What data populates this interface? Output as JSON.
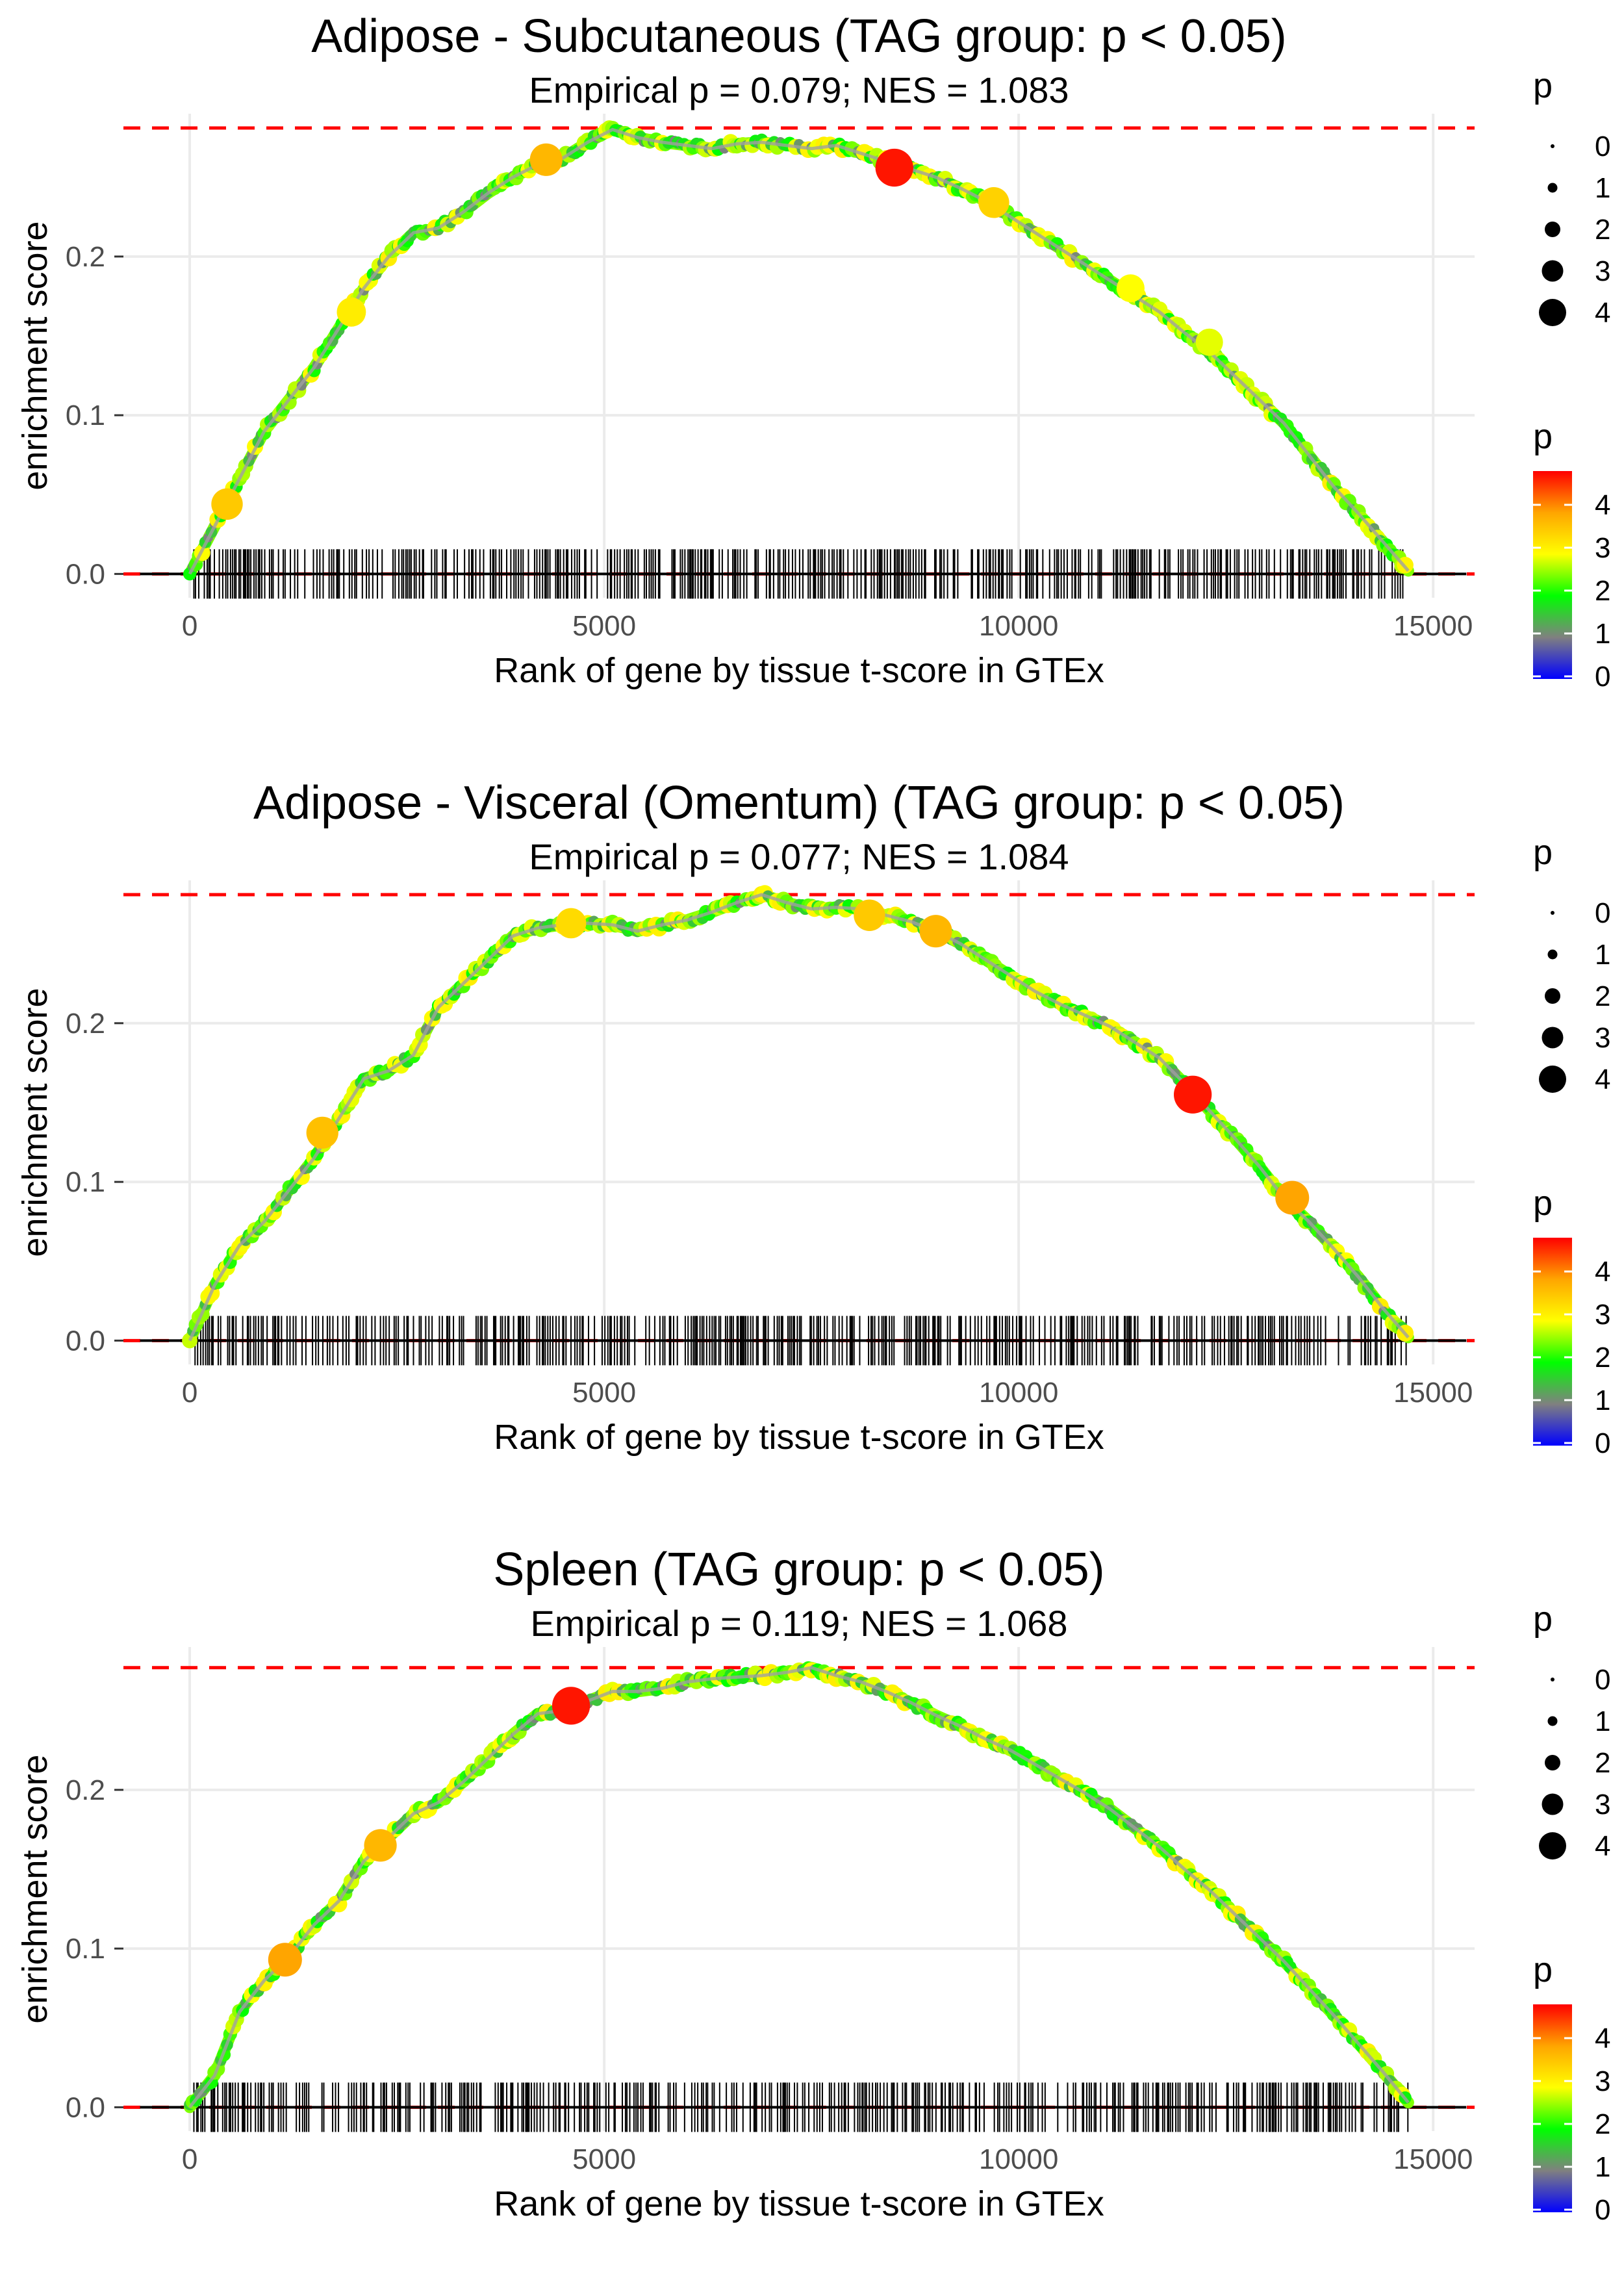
{
  "chart_data": [
    {
      "type": "line",
      "title": "Adipose - Subcutaneous (TAG group: p < 0.05)",
      "subtitle": "Empirical p = 0.079; NES = 1.083",
      "xlabel": "Rank of gene by tissue t-score in GTEx",
      "ylabel": "enrichment score",
      "xlim": [
        -800,
        15500
      ],
      "ylim": [
        -0.015,
        0.29
      ],
      "xticks": [
        0,
        5000,
        10000,
        15000
      ],
      "xtick_labels": [
        "0",
        "5000",
        "10000",
        "15000"
      ],
      "yticks": [
        0.0,
        0.1,
        0.2
      ],
      "ytick_labels": [
        "0.0",
        "0.1",
        "0.2"
      ],
      "max_es": 0.281,
      "max_line_color": "#ff0000",
      "series": [
        {
          "name": "running enrichment score",
          "x": [
            0,
            300,
            600,
            900,
            1200,
            1500,
            1800,
            2100,
            2400,
            2700,
            3000,
            3300,
            3600,
            3900,
            4200,
            4500,
            4800,
            5100,
            5400,
            5700,
            6000,
            6300,
            6600,
            6900,
            7200,
            7500,
            7800,
            8100,
            8400,
            8700,
            9000,
            9300,
            9600,
            9900,
            10200,
            10500,
            10800,
            11100,
            11400,
            11700,
            12000,
            12300,
            12600,
            12900,
            13200,
            13500,
            13800,
            14100,
            14400,
            14700
          ],
          "values": [
            0.0,
            0.03,
            0.06,
            0.09,
            0.11,
            0.13,
            0.155,
            0.18,
            0.2,
            0.215,
            0.218,
            0.228,
            0.24,
            0.25,
            0.258,
            0.262,
            0.272,
            0.28,
            0.275,
            0.272,
            0.27,
            0.268,
            0.271,
            0.272,
            0.27,
            0.268,
            0.27,
            0.265,
            0.26,
            0.255,
            0.25,
            0.243,
            0.235,
            0.225,
            0.215,
            0.205,
            0.195,
            0.185,
            0.175,
            0.165,
            0.152,
            0.14,
            0.125,
            0.11,
            0.095,
            0.075,
            0.055,
            0.038,
            0.02,
            0.002
          ]
        }
      ],
      "highlight_points": [
        {
          "x": 450,
          "y": 0.044,
          "p": 3.6
        },
        {
          "x": 1950,
          "y": 0.165,
          "p": 3.2
        },
        {
          "x": 4300,
          "y": 0.261,
          "p": 3.8
        },
        {
          "x": 8500,
          "y": 0.256,
          "p": 4.7
        },
        {
          "x": 9700,
          "y": 0.234,
          "p": 3.5
        },
        {
          "x": 11350,
          "y": 0.18,
          "p": 3.0
        },
        {
          "x": 12300,
          "y": 0.146,
          "p": 2.9
        }
      ],
      "legend_size": {
        "title": "p",
        "labels": [
          "0",
          "1",
          "2",
          "3",
          "4"
        ]
      },
      "legend_color": {
        "title": "p",
        "labels": [
          "4",
          "3",
          "2",
          "1",
          "0"
        ],
        "stops": [
          "#ff0000",
          "#ffa500",
          "#ffff00",
          "#00ff00",
          "#808080",
          "#0000ff"
        ]
      }
    },
    {
      "type": "line",
      "title": "Adipose - Visceral (Omentum) (TAG group: p < 0.05)",
      "subtitle": "Empirical p = 0.077; NES = 1.084",
      "xlabel": "Rank of gene by tissue t-score in GTEx",
      "ylabel": "enrichment score",
      "xlim": [
        -800,
        15500
      ],
      "ylim": [
        -0.015,
        0.29
      ],
      "xticks": [
        0,
        5000,
        10000,
        15000
      ],
      "xtick_labels": [
        "0",
        "5000",
        "10000",
        "15000"
      ],
      "yticks": [
        0.0,
        0.1,
        0.2
      ],
      "ytick_labels": [
        "0.0",
        "0.1",
        "0.2"
      ],
      "max_es": 0.281,
      "max_line_color": "#ff0000",
      "series": [
        {
          "name": "running enrichment score",
          "x": [
            0,
            300,
            600,
            900,
            1200,
            1500,
            1800,
            2100,
            2400,
            2700,
            3000,
            3300,
            3600,
            3900,
            4200,
            4500,
            4800,
            5100,
            5400,
            5700,
            6000,
            6300,
            6600,
            6900,
            7200,
            7500,
            7800,
            8100,
            8400,
            8700,
            9000,
            9300,
            9600,
            9900,
            10200,
            10500,
            10800,
            11100,
            11400,
            11700,
            12000,
            12300,
            12600,
            12900,
            13200,
            13500,
            13800,
            14100,
            14400,
            14700
          ],
          "values": [
            0.0,
            0.035,
            0.06,
            0.075,
            0.095,
            0.115,
            0.14,
            0.165,
            0.17,
            0.18,
            0.21,
            0.225,
            0.24,
            0.255,
            0.26,
            0.262,
            0.263,
            0.262,
            0.258,
            0.262,
            0.265,
            0.27,
            0.276,
            0.281,
            0.276,
            0.272,
            0.273,
            0.272,
            0.268,
            0.264,
            0.258,
            0.25,
            0.24,
            0.23,
            0.22,
            0.212,
            0.205,
            0.198,
            0.188,
            0.178,
            0.162,
            0.145,
            0.128,
            0.11,
            0.09,
            0.075,
            0.058,
            0.04,
            0.02,
            0.002
          ]
        }
      ],
      "highlight_points": [
        {
          "x": 1600,
          "y": 0.131,
          "p": 3.7
        },
        {
          "x": 4600,
          "y": 0.263,
          "p": 3.4
        },
        {
          "x": 8200,
          "y": 0.268,
          "p": 3.6
        },
        {
          "x": 9000,
          "y": 0.258,
          "p": 3.8
        },
        {
          "x": 12100,
          "y": 0.155,
          "p": 4.7
        },
        {
          "x": 13300,
          "y": 0.09,
          "p": 4.0
        }
      ],
      "legend_size": {
        "title": "p",
        "labels": [
          "0",
          "1",
          "2",
          "3",
          "4"
        ]
      },
      "legend_color": {
        "title": "p",
        "labels": [
          "4",
          "3",
          "2",
          "1",
          "0"
        ],
        "stops": [
          "#ff0000",
          "#ffa500",
          "#ffff00",
          "#00ff00",
          "#808080",
          "#0000ff"
        ]
      }
    },
    {
      "type": "line",
      "title": "Spleen (TAG group: p < 0.05)",
      "subtitle": "Empirical p = 0.119; NES = 1.068",
      "xlabel": "Rank of gene by tissue t-score in GTEx",
      "ylabel": "enrichment score",
      "xlim": [
        -800,
        15500
      ],
      "ylim": [
        -0.015,
        0.29
      ],
      "xticks": [
        0,
        5000,
        10000,
        15000
      ],
      "xtick_labels": [
        "0",
        "5000",
        "10000",
        "15000"
      ],
      "yticks": [
        0.0,
        0.1,
        0.2
      ],
      "ytick_labels": [
        "0.0",
        "0.1",
        "0.2"
      ],
      "max_es": 0.277,
      "max_line_color": "#ff0000",
      "series": [
        {
          "name": "running enrichment score",
          "x": [
            0,
            300,
            600,
            900,
            1200,
            1500,
            1800,
            2100,
            2400,
            2700,
            3000,
            3300,
            3600,
            3900,
            4200,
            4500,
            4800,
            5100,
            5400,
            5700,
            6000,
            6300,
            6600,
            6900,
            7200,
            7500,
            7800,
            8100,
            8400,
            8700,
            9000,
            9300,
            9600,
            9900,
            10200,
            10500,
            10800,
            11100,
            11400,
            11700,
            12000,
            12300,
            12600,
            12900,
            13200,
            13500,
            13800,
            14100,
            14400,
            14700
          ],
          "values": [
            0.0,
            0.02,
            0.06,
            0.08,
            0.095,
            0.115,
            0.13,
            0.155,
            0.17,
            0.185,
            0.192,
            0.205,
            0.22,
            0.235,
            0.248,
            0.25,
            0.256,
            0.262,
            0.262,
            0.264,
            0.268,
            0.27,
            0.271,
            0.272,
            0.274,
            0.277,
            0.272,
            0.268,
            0.262,
            0.255,
            0.247,
            0.24,
            0.232,
            0.225,
            0.216,
            0.207,
            0.198,
            0.188,
            0.176,
            0.164,
            0.15,
            0.137,
            0.122,
            0.107,
            0.092,
            0.075,
            0.058,
            0.04,
            0.022,
            0.003
          ]
        }
      ],
      "highlight_points": [
        {
          "x": 1150,
          "y": 0.093,
          "p": 4.0
        },
        {
          "x": 2300,
          "y": 0.165,
          "p": 3.8
        },
        {
          "x": 4600,
          "y": 0.253,
          "p": 4.7
        }
      ],
      "legend_size": {
        "title": "p",
        "labels": [
          "0",
          "1",
          "2",
          "3",
          "4"
        ]
      },
      "legend_color": {
        "title": "p",
        "labels": [
          "4",
          "3",
          "2",
          "1",
          "0"
        ],
        "stops": [
          "#ff0000",
          "#ffa500",
          "#ffff00",
          "#00ff00",
          "#808080",
          "#0000ff"
        ]
      }
    }
  ]
}
